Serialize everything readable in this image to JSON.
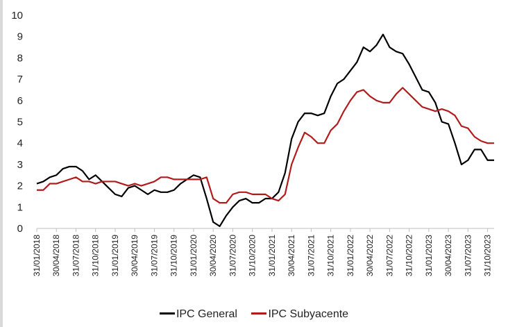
{
  "chart_data": {
    "type": "line",
    "title": "",
    "xlabel": "",
    "ylabel": "",
    "ylim": [
      0,
      10
    ],
    "yticks": [
      0,
      1,
      2,
      3,
      4,
      5,
      6,
      7,
      8,
      9,
      10
    ],
    "grid": false,
    "legend_position": "bottom",
    "x_start": "2018-01",
    "x_tick_labels": [
      "31/01/2018",
      "30/04/2018",
      "31/07/2018",
      "31/10/2018",
      "31/01/2019",
      "30/04/2019",
      "31/07/2019",
      "31/10/2019",
      "31/01/2020",
      "30/04/2020",
      "31/07/2020",
      "31/10/2020",
      "31/01/2021",
      "30/04/2021",
      "31/07/2021",
      "31/10/2021",
      "31/01/2022",
      "30/04/2022",
      "31/07/2022",
      "31/10/2022",
      "31/01/2023",
      "30/04/2023",
      "31/07/2023",
      "31/10/2023"
    ],
    "series": [
      {
        "name": "IPC General",
        "color": "#000000",
        "values": [
          2.1,
          2.2,
          2.4,
          2.5,
          2.8,
          2.9,
          2.9,
          2.7,
          2.3,
          2.5,
          2.2,
          1.9,
          1.6,
          1.5,
          1.9,
          2.0,
          1.8,
          1.6,
          1.8,
          1.7,
          1.7,
          1.8,
          2.1,
          2.3,
          2.5,
          2.4,
          1.4,
          0.3,
          0.1,
          0.6,
          1.0,
          1.3,
          1.4,
          1.2,
          1.2,
          1.4,
          1.4,
          1.7,
          2.6,
          4.2,
          5.0,
          5.4,
          5.4,
          5.3,
          5.4,
          6.2,
          6.8,
          7.0,
          7.4,
          7.8,
          8.5,
          8.3,
          8.6,
          9.1,
          8.5,
          8.3,
          8.2,
          7.7,
          7.1,
          6.5,
          6.4,
          5.9,
          5.0,
          4.9,
          4.0,
          3.0,
          3.2,
          3.7,
          3.7,
          3.2,
          3.2
        ]
      },
      {
        "name": "IPC Subyacente",
        "color": "#b01c1c",
        "values": [
          1.8,
          1.8,
          2.1,
          2.1,
          2.2,
          2.3,
          2.4,
          2.2,
          2.2,
          2.1,
          2.2,
          2.2,
          2.2,
          2.1,
          2.0,
          2.1,
          2.0,
          2.1,
          2.2,
          2.4,
          2.4,
          2.3,
          2.3,
          2.3,
          2.3,
          2.3,
          2.4,
          1.4,
          1.2,
          1.2,
          1.6,
          1.7,
          1.7,
          1.6,
          1.6,
          1.6,
          1.4,
          1.3,
          1.6,
          3.0,
          3.8,
          4.5,
          4.3,
          4.0,
          4.0,
          4.6,
          4.9,
          5.5,
          6.0,
          6.4,
          6.5,
          6.2,
          6.0,
          5.9,
          5.9,
          6.3,
          6.6,
          6.3,
          6.0,
          5.7,
          5.6,
          5.5,
          5.6,
          5.5,
          5.3,
          4.8,
          4.7,
          4.3,
          4.1,
          4.0,
          4.0
        ]
      }
    ]
  }
}
